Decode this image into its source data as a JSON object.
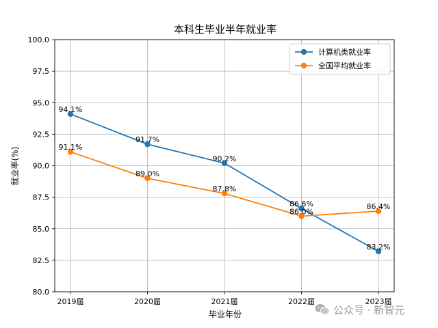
{
  "chart_data": {
    "type": "line",
    "title": "本科生毕业半年就业率",
    "xlabel": "毕业年份",
    "ylabel": "就业率(%)",
    "categories": [
      "2019届",
      "2020届",
      "2021届",
      "2022届",
      "2023届"
    ],
    "ylim": [
      80.0,
      100.0
    ],
    "yticks": [
      "80.0",
      "82.5",
      "85.0",
      "87.5",
      "90.0",
      "92.5",
      "95.0",
      "97.5",
      "100.0"
    ],
    "grid": true,
    "legend_position": "top-right",
    "series": [
      {
        "name": "计算机类就业率",
        "color": "#1f77b4",
        "values": [
          94.1,
          91.7,
          90.2,
          86.6,
          83.2
        ],
        "labels": [
          "94.1%",
          "91.7%",
          "90.2%",
          "86.6%",
          "83.2%"
        ]
      },
      {
        "name": "全国平均就业率",
        "color": "#ff7f0e",
        "values": [
          91.1,
          89.0,
          87.8,
          86.0,
          86.4
        ],
        "labels": [
          "91.1%",
          "89.0%",
          "87.8%",
          "86.0%",
          "86.4%"
        ]
      }
    ]
  },
  "watermark": {
    "text": "公众号 · 新智元",
    "icon": "wechat-icon"
  }
}
